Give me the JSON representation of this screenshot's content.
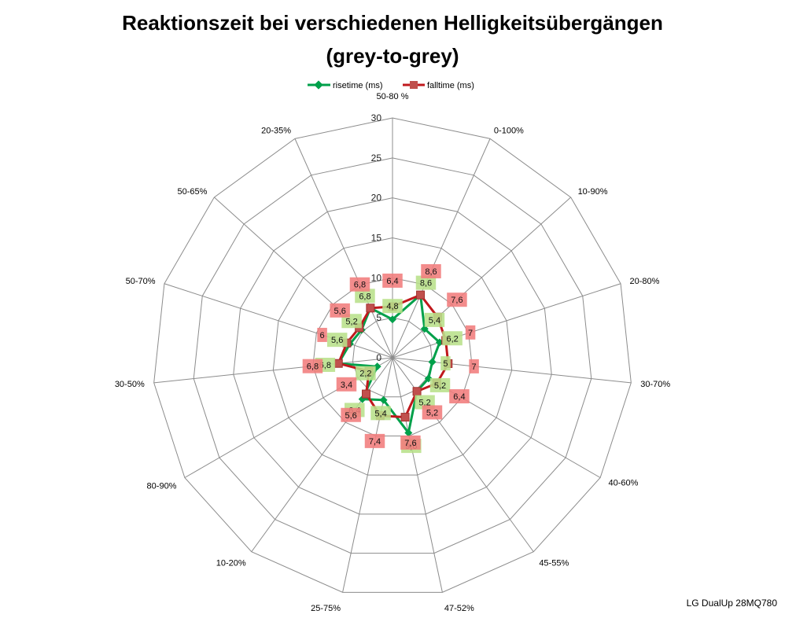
{
  "chart_data": {
    "type": "radar",
    "title": "Reaktionszeit bei verschiedenen Helligkeitsübergängen",
    "subtitle": "(grey-to-grey)",
    "categories": [
      "50-80 %",
      "0-100%",
      "10-90%",
      "20-80%",
      "30-70%",
      "40-60%",
      "45-55%",
      "47-52%",
      "25-75%",
      "10-20%",
      "80-90%",
      "30-50%",
      "50-70%",
      "50-65%",
      "20-35%"
    ],
    "rlim": [
      0,
      30
    ],
    "ticks": [
      0,
      5,
      10,
      15,
      20,
      25,
      30
    ],
    "grid": true,
    "legend_position": "top",
    "series": [
      {
        "name": "risetime (ms)",
        "color": "#00a04a",
        "marker": "diamond",
        "values": [
          4.8,
          8.6,
          5.4,
          6.2,
          5,
          5.2,
          5.2,
          9.6,
          5.4,
          6.4,
          2.2,
          6.8,
          5.6,
          5.2,
          6.8
        ]
      },
      {
        "name": "falltime (ms)",
        "color": "#c0181c",
        "marker": "square",
        "values": [
          6.4,
          8.6,
          7.6,
          7,
          7,
          6.4,
          5.2,
          7.6,
          7.4,
          5.6,
          3.4,
          6.8,
          6,
          5.6,
          6.8
        ]
      }
    ]
  },
  "footer": {
    "text": "LG DualUp 28MQ780"
  }
}
